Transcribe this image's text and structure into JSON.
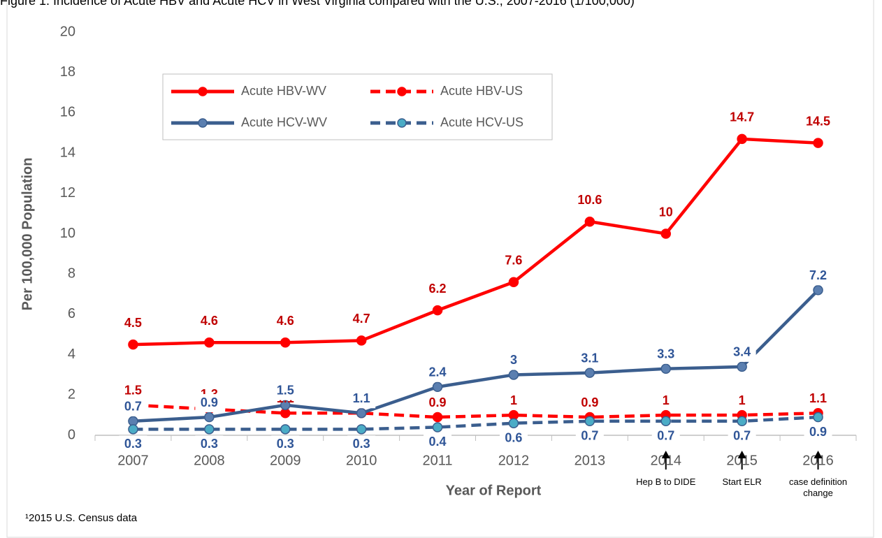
{
  "chart_data": {
    "type": "line",
    "title": "Figure 1. Incidence of Acute HBV and Acute HCV in West Virginia compared with the U.S., 2007-2016 (1/100,000)",
    "x_label": "Year of Report",
    "y_label": "Per 100,000 Population",
    "categories": [
      "2007",
      "2008",
      "2009",
      "2010",
      "2011",
      "2012",
      "2013",
      "2014",
      "2015",
      "2016"
    ],
    "series": [
      {
        "name": "Acute HBV-WV",
        "color": "#ff0000",
        "label_color": "#c00000",
        "marker_color": "#ff0000",
        "line_style": "solid",
        "values": [
          4.5,
          4.6,
          4.6,
          4.7,
          6.2,
          7.6,
          10.6,
          10,
          14.7,
          14.5
        ]
      },
      {
        "name": "Acute HBV-US",
        "color": "#ff0000",
        "label_color": "#c00000",
        "marker_color": "#ff0000",
        "line_style": "dashed",
        "values": [
          1.5,
          1.3,
          1.1,
          1.1,
          0.9,
          1,
          0.9,
          1,
          1,
          1.1
        ]
      },
      {
        "name": "Acute HCV-WV",
        "color": "#3b5e8e",
        "label_color": "#2f5597",
        "marker_color": "#5b7fb0",
        "line_style": "solid",
        "values": [
          0.7,
          0.9,
          1.5,
          1.1,
          2.4,
          3,
          3.1,
          3.3,
          3.4,
          7.2
        ]
      },
      {
        "name": "Acute HCV-US",
        "color": "#3b5e8e",
        "label_color": "#2f5597",
        "marker_color": "#4bacc6",
        "line_style": "dashed",
        "values": [
          0.3,
          0.3,
          0.3,
          0.3,
          0.4,
          0.6,
          0.7,
          0.7,
          0.7,
          0.9
        ]
      }
    ],
    "ylim": [
      0,
      20
    ],
    "yticks": [
      0,
      2,
      4,
      6,
      8,
      10,
      12,
      14,
      16,
      18,
      20
    ],
    "grid": false,
    "legend": "upper left",
    "annotations": [
      "Hep B to DIDE",
      "Start ELR",
      "case definition change"
    ],
    "footnote": "¹2015 U.S. Census data"
  }
}
